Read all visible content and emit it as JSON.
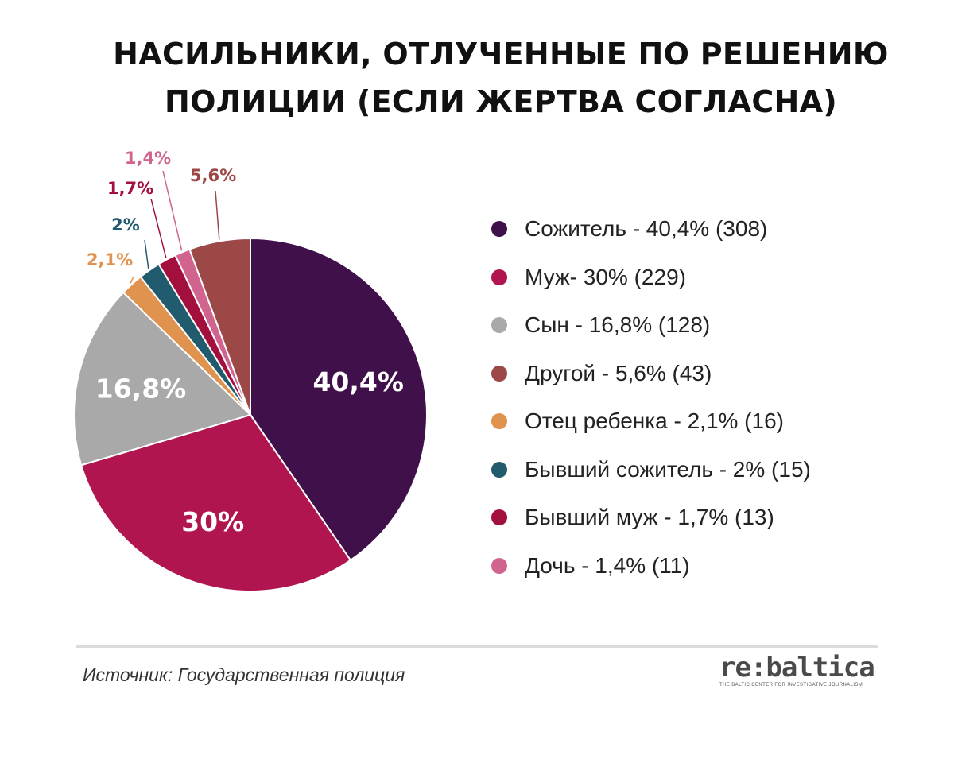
{
  "title_lines": [
    "НАСИЛЬНИКИ, ОТЛУЧЕННЫЕ ПО РЕШЕНИЮ",
    "ПОЛИЦИИ (ЕСЛИ ЖЕРТВА СОГЛАСНА)"
  ],
  "source": "Источник: Государственная полиция",
  "logo": {
    "main": "re:baltica",
    "sub": "THE BALTIC CENTER FOR INVESTIGATIVE JOURNALISM"
  },
  "chart_data": {
    "type": "pie",
    "title": "НАСИЛЬНИКИ, ОТЛУЧЕННЫЕ ПО РЕШЕНИЮ ПОЛИЦИИ (ЕСЛИ ЖЕРТВА СОГЛАСНА)",
    "legend_position": "right",
    "slices": [
      {
        "label": "Сожитель - 40,4% (308)",
        "value": 40.4,
        "count": 308,
        "data_label": "40,4%",
        "color": "#40104a"
      },
      {
        "label": "Муж- 30% (229)",
        "value": 30,
        "count": 229,
        "data_label": "30%",
        "color": "#b0154f"
      },
      {
        "label": "Сын - 16,8% (128)",
        "value": 16.8,
        "count": 128,
        "data_label": "16,8%",
        "color": "#a9a9a9"
      },
      {
        "label": "Отец ребенка - 2,1% (16)",
        "value": 2.1,
        "count": 16,
        "data_label": "2,1%",
        "color": "#e0924f"
      },
      {
        "label": "Бывший сожитель - 2% (15)",
        "value": 2,
        "count": 15,
        "data_label": "2%",
        "color": "#225a6e"
      },
      {
        "label": "Бывший муж - 1,7% (13)",
        "value": 1.7,
        "count": 13,
        "data_label": "1,7%",
        "color": "#a3103e"
      },
      {
        "label": "Дочь - 1,4% (11)",
        "value": 1.4,
        "count": 11,
        "data_label": "1,4%",
        "color": "#d0648f"
      },
      {
        "label": "Другой - 5,6% (43)",
        "value": 5.6,
        "count": 43,
        "data_label": "5,6%",
        "color": "#9b4846"
      }
    ],
    "legend_order": [
      0,
      1,
      2,
      7,
      3,
      4,
      5,
      6
    ]
  }
}
